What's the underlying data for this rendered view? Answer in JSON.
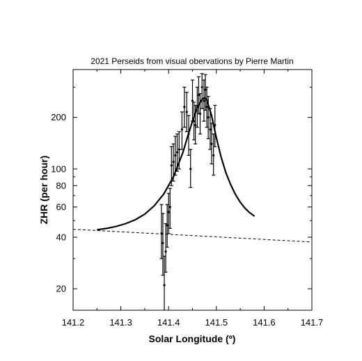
{
  "chart_data": {
    "type": "scatter",
    "title": "2021 Perseids from visual obervations by Pierre Martin",
    "xlabel": "Solar Longitude (º)",
    "ylabel": "ZHR (per hour)",
    "xlim": [
      141.2,
      141.7
    ],
    "ylim": [
      15,
      380
    ],
    "y_scale": "log",
    "grid": false,
    "x_ticks": [
      141.2,
      141.3,
      141.4,
      141.5,
      141.6,
      141.7
    ],
    "x_tick_labels": [
      "141.2",
      "141.3",
      "141.4",
      "141.5",
      "141.6",
      "141.7"
    ],
    "y_ticks": [
      20,
      40,
      60,
      80,
      100,
      200
    ],
    "y_tick_labels": [
      "20",
      "40",
      "60",
      "80",
      "100",
      "200"
    ],
    "series": [
      {
        "style": "points-with-error-bars",
        "x": [
          141.385,
          141.388,
          141.391,
          141.394,
          141.397,
          141.4,
          141.403,
          141.406,
          141.41,
          141.414,
          141.418,
          141.422,
          141.428,
          141.433,
          141.438,
          141.442,
          141.446,
          141.45,
          141.453,
          141.456,
          141.46,
          141.463,
          141.466,
          141.47,
          141.474,
          141.477,
          141.48,
          141.483,
          141.487,
          141.49,
          141.494,
          141.497
        ],
        "y": [
          42,
          37,
          21,
          33,
          47,
          56,
          60,
          105,
          110,
          120,
          125,
          130,
          170,
          230,
          215,
          160,
          100,
          250,
          190,
          180,
          230,
          270,
          210,
          300,
          250,
          290,
          230,
          200,
          170,
          140,
          120,
          180
        ],
        "y_low": [
          30,
          24,
          14,
          25,
          35,
          42,
          45,
          80,
          85,
          92,
          97,
          100,
          130,
          175,
          165,
          120,
          78,
          190,
          148,
          140,
          175,
          210,
          160,
          225,
          190,
          220,
          175,
          150,
          130,
          107,
          92,
          135
        ],
        "y_high": [
          62,
          55,
          31,
          48,
          62,
          72,
          77,
          135,
          140,
          155,
          160,
          165,
          215,
          300,
          280,
          205,
          130,
          330,
          245,
          235,
          300,
          345,
          275,
          360,
          330,
          355,
          300,
          265,
          225,
          185,
          160,
          235
        ]
      },
      {
        "style": "solid-curve",
        "x": [
          141.25,
          141.27,
          141.29,
          141.31,
          141.33,
          141.35,
          141.37,
          141.39,
          141.41,
          141.43,
          141.44,
          141.45,
          141.46,
          141.47,
          141.475,
          141.48,
          141.49,
          141.5,
          141.51,
          141.52,
          141.53,
          141.54,
          141.55,
          141.56,
          141.57,
          141.58
        ],
        "y": [
          44.2,
          45.0,
          46.2,
          48.0,
          50.5,
          54.5,
          61.0,
          71.5,
          90.0,
          125.0,
          155.0,
          190.0,
          228.0,
          255.0,
          260.0,
          253.0,
          205.0,
          152.0,
          117.0,
          95.0,
          81.0,
          71.0,
          64.0,
          59.0,
          55.5,
          53.0
        ]
      },
      {
        "style": "dashed-line",
        "x": [
          141.2,
          141.7
        ],
        "y": [
          44.5,
          37.5
        ]
      }
    ]
  }
}
